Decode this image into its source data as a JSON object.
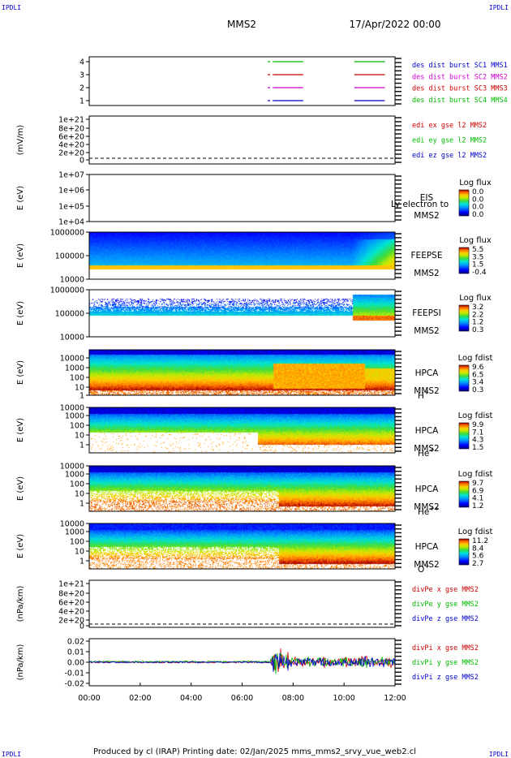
{
  "corners": [
    "IPDLI",
    "IPDLI",
    "IPDLI",
    "IPDLI"
  ],
  "header": {
    "spacecraft": "MMS2",
    "date": "17/Apr/2022 00:00"
  },
  "footer": "Produced by cl (IRAP)   Printing date: 02/Jan/2025   mms_mms2_srvy_vue_web2.cl",
  "time_axis": {
    "ticks": [
      "00:00",
      "02:00",
      "04:00",
      "06:00",
      "08:00",
      "10:00",
      "12:00"
    ],
    "range_hours": [
      0,
      12
    ]
  },
  "colors": {
    "mms1": "#0000cc",
    "mms2": "#cc0000",
    "mms3": "#cc00cc",
    "mms4": "#00bb00",
    "ex": "#cc0000",
    "ey": "#00bb00",
    "ez": "#0000cc"
  },
  "chart_data": [
    {
      "type": "line",
      "ylim": [
        0.5,
        4.5
      ],
      "yticks": [
        "4",
        "3",
        "2",
        "1"
      ],
      "legend": [
        "des dist burst SC1 MMS1",
        "des dist burst SC2 MMS2",
        "des dist burst SC3 MMS3",
        "des dist burst SC4 MMS4"
      ],
      "series": [
        {
          "level": 4,
          "color": "mms4",
          "intervals": [
            [
              7.0,
              7.1
            ],
            [
              7.2,
              8.4
            ],
            [
              10.4,
              11.6
            ]
          ]
        },
        {
          "level": 3,
          "color": "mms2",
          "intervals": [
            [
              7.0,
              7.1
            ],
            [
              7.2,
              8.4
            ],
            [
              10.4,
              11.6
            ]
          ]
        },
        {
          "level": 2,
          "color": "mms3",
          "intervals": [
            [
              7.0,
              7.1
            ],
            [
              7.2,
              8.4
            ],
            [
              10.4,
              11.6
            ]
          ]
        },
        {
          "level": 1,
          "color": "mms1",
          "intervals": [
            [
              7.0,
              7.1
            ],
            [
              7.2,
              8.4
            ],
            [
              10.4,
              11.6
            ]
          ]
        }
      ]
    },
    {
      "type": "line",
      "ylabel": "(mV/m)",
      "yticks": [
        "1e+21",
        "8e+20",
        "6e+20",
        "4e+20",
        "2e+20",
        "0"
      ],
      "legend": [
        "edi ex gse l2 MMS2",
        "edi ey gse l2 MMS2",
        "edi ez gse l2 MMS2"
      ],
      "dashed_zero": true
    },
    {
      "type": "heatmap",
      "ylabel": "E (eV)",
      "yticks": [
        "1e+07",
        "1e+06",
        "1e+05",
        "1e+04"
      ],
      "side": [
        "EIS",
        "MMS2"
      ],
      "overlay": "Ly electron to",
      "cb_title": "Log flux",
      "cb_ticks": [
        "0.0",
        "0.0",
        "0.0",
        "0.0"
      ]
    },
    {
      "type": "heatmap",
      "ylabel": "E (eV)",
      "yticks": [
        "1000000",
        "100000",
        "10000"
      ],
      "side": [
        "FEEPSE",
        "MMS2"
      ],
      "cb_title": "Log flux",
      "cb_ticks": [
        "5.5",
        "3.5",
        "1.5",
        "-0.4"
      ]
    },
    {
      "type": "heatmap",
      "ylabel": "E (eV)",
      "yticks": [
        "1000000",
        "100000",
        "10000"
      ],
      "side": [
        "FEEPSI",
        "MMS2"
      ],
      "cb_title": "Log flux",
      "cb_ticks": [
        "3.2",
        "2.2",
        "1.2",
        "0.3"
      ]
    },
    {
      "type": "heatmap",
      "ylabel": "E (eV)",
      "yticks": [
        "10000",
        "1000",
        "100",
        "10",
        "1"
      ],
      "side": [
        "HPCA",
        "MMS2",
        "H",
        "+"
      ],
      "cb_title": "Log fdist",
      "cb_ticks": [
        "9.6",
        "6.5",
        "3.4",
        "0.3"
      ]
    },
    {
      "type": "heatmap",
      "ylabel": "E (eV)",
      "yticks": [
        "10000",
        "1000",
        "100",
        "10",
        "1"
      ],
      "side": [
        "HPCA",
        "MMS2",
        "He",
        "+"
      ],
      "cb_title": "Log fdist",
      "cb_ticks": [
        "9.9",
        "7.1",
        "4.3",
        "1.5"
      ]
    },
    {
      "type": "heatmap",
      "ylabel": "E (eV)",
      "yticks": [
        "10000",
        "1000",
        "100",
        "10",
        "1"
      ],
      "side": [
        "HPCA",
        "MMS2",
        "He",
        "++"
      ],
      "cb_title": "Log fdist",
      "cb_ticks": [
        "9.7",
        "6.9",
        "4.1",
        "1.2"
      ]
    },
    {
      "type": "heatmap",
      "ylabel": "E (eV)",
      "yticks": [
        "10000",
        "1000",
        "100",
        "10",
        "1"
      ],
      "side": [
        "HPCA",
        "MMS2",
        "O",
        "+"
      ],
      "cb_title": "Log fdist",
      "cb_ticks": [
        "11.2",
        "8.4",
        "5.6",
        "2.7"
      ]
    },
    {
      "type": "line",
      "ylabel": "(nPa/km)",
      "yticks": [
        "1e+21",
        "8e+20",
        "6e+20",
        "4e+20",
        "2e+20",
        "0"
      ],
      "legend": [
        "divPe x gse MMS2",
        "divPe y gse MMS2",
        "divPe z gse MMS2"
      ],
      "dashed_zero": true
    },
    {
      "type": "line",
      "ylabel": "(nPa/km)",
      "ylim": [
        -0.025,
        0.025
      ],
      "yticks": [
        "0.02",
        "0.01",
        "0.00",
        "-0.01",
        "-0.02"
      ],
      "legend": [
        "divPi x gse MMS2",
        "divPi y gse MMS2",
        "divPi z gse MMS2"
      ]
    }
  ]
}
